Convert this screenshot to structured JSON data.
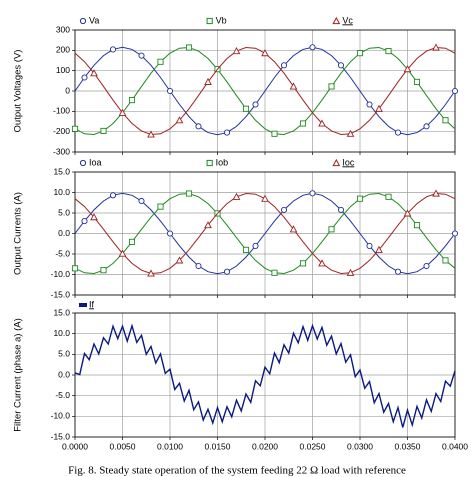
{
  "chart_data": [
    {
      "type": "line",
      "y_label": "Output Voltages (V)",
      "x": [
        0,
        0.001,
        0.002,
        0.003,
        0.004,
        0.005,
        0.006,
        0.007,
        0.008,
        0.009,
        0.01,
        0.011,
        0.012,
        0.013,
        0.014,
        0.015,
        0.016,
        0.017,
        0.018,
        0.019,
        0.02,
        0.021,
        0.022,
        0.023,
        0.024,
        0.025,
        0.026,
        0.027,
        0.028,
        0.029,
        0.03,
        0.031,
        0.032,
        0.033,
        0.034,
        0.035,
        0.036,
        0.037,
        0.038,
        0.039,
        0.04
      ],
      "series": [
        {
          "name": "Va",
          "color": "#1f2f9f",
          "marker": "circle",
          "values": [
            0,
            66.4,
            126.4,
            173.9,
            204.5,
            215,
            204.5,
            173.9,
            126.4,
            66.4,
            0,
            -66.4,
            -126.4,
            -173.9,
            -204.5,
            -215,
            -204.5,
            -173.9,
            -126.4,
            -66.4,
            0,
            66.4,
            126.4,
            173.9,
            204.5,
            215,
            204.5,
            173.9,
            126.4,
            66.4,
            0,
            -66.4,
            -126.4,
            -173.9,
            -204.5,
            -215,
            -204.5,
            -173.9,
            -126.4,
            -66.4,
            0
          ]
        },
        {
          "name": "Vb",
          "color": "#1e8a1e",
          "marker": "square",
          "values": [
            -186.2,
            -210.3,
            -213.8,
            -196.4,
            -159.8,
            -107.5,
            -44.7,
            22.5,
            87.4,
            143.9,
            186.2,
            210.3,
            213.8,
            196.4,
            159.8,
            107.5,
            44.7,
            -22.5,
            -87.4,
            -143.9,
            -186.2,
            -210.3,
            -213.8,
            -196.4,
            -159.8,
            -107.5,
            -44.7,
            22.5,
            87.4,
            143.9,
            186.2,
            210.3,
            213.8,
            196.4,
            159.8,
            107.5,
            44.7,
            -22.5,
            -87.4,
            -143.9,
            -186.2
          ]
        },
        {
          "name": "Vc",
          "color": "#a02020",
          "marker": "triangle",
          "values": [
            186.2,
            143.9,
            87.4,
            22.5,
            -44.7,
            -107.5,
            -159.8,
            -196.4,
            -213.8,
            -210.3,
            -186.2,
            -143.9,
            -87.4,
            -22.5,
            44.7,
            107.5,
            159.8,
            196.4,
            213.8,
            210.3,
            186.2,
            143.9,
            87.4,
            22.5,
            -44.7,
            -107.5,
            -159.8,
            -196.4,
            -213.8,
            -210.3,
            -186.2,
            -143.9,
            -87.4,
            -22.5,
            44.7,
            107.5,
            159.8,
            196.4,
            213.8,
            210.3,
            186.2
          ]
        }
      ],
      "xlim": [
        0,
        0.04
      ],
      "xticks": [
        0,
        0.005,
        0.01,
        0.015,
        0.02,
        0.025,
        0.03,
        0.035,
        0.04
      ],
      "ylim": [
        -300,
        300
      ],
      "yticks": [
        300,
        200,
        100,
        0,
        -100,
        -200,
        -300
      ],
      "grid": true
    },
    {
      "type": "line",
      "y_label": "Output Currents (A)",
      "x": [
        0,
        0.001,
        0.002,
        0.003,
        0.004,
        0.005,
        0.006,
        0.007,
        0.008,
        0.009,
        0.01,
        0.011,
        0.012,
        0.013,
        0.014,
        0.015,
        0.016,
        0.017,
        0.018,
        0.019,
        0.02,
        0.021,
        0.022,
        0.023,
        0.024,
        0.025,
        0.026,
        0.027,
        0.028,
        0.029,
        0.03,
        0.031,
        0.032,
        0.033,
        0.034,
        0.035,
        0.036,
        0.037,
        0.038,
        0.039,
        0.04
      ],
      "series": [
        {
          "name": "Ioa",
          "color": "#1f2f9f",
          "marker": "circle",
          "values": [
            0,
            3.03,
            5.76,
            7.93,
            9.32,
            9.8,
            9.32,
            7.93,
            5.76,
            3.03,
            0,
            -3.03,
            -5.76,
            -7.93,
            -9.32,
            -9.8,
            -9.32,
            -7.93,
            -5.76,
            -3.03,
            0,
            3.03,
            5.76,
            7.93,
            9.32,
            9.8,
            9.32,
            7.93,
            5.76,
            3.03,
            0,
            -3.03,
            -5.76,
            -7.93,
            -9.32,
            -9.8,
            -9.32,
            -7.93,
            -5.76,
            -3.03,
            0
          ]
        },
        {
          "name": "Iob",
          "color": "#1e8a1e",
          "marker": "square",
          "values": [
            -8.49,
            -9.58,
            -9.75,
            -8.95,
            -7.28,
            -4.9,
            -2.04,
            1.02,
            3.99,
            6.56,
            8.49,
            9.58,
            9.75,
            8.95,
            7.28,
            4.9,
            2.04,
            -1.02,
            -3.99,
            -6.56,
            -8.49,
            -9.58,
            -9.75,
            -8.95,
            -7.28,
            -4.9,
            -2.04,
            1.02,
            3.99,
            6.56,
            8.49,
            9.58,
            9.75,
            8.95,
            7.28,
            4.9,
            2.04,
            -1.02,
            -3.99,
            -6.56,
            -8.49
          ]
        },
        {
          "name": "Ioc",
          "color": "#a02020",
          "marker": "triangle",
          "values": [
            8.49,
            6.56,
            3.99,
            1.02,
            -2.04,
            -4.9,
            -7.28,
            -8.95,
            -9.75,
            -9.58,
            -8.49,
            -6.56,
            -3.99,
            -1.02,
            2.04,
            4.9,
            7.28,
            8.95,
            9.75,
            9.58,
            8.49,
            6.56,
            3.99,
            1.02,
            -2.04,
            -4.9,
            -7.28,
            -8.95,
            -9.75,
            -9.58,
            -8.49,
            -6.56,
            -3.99,
            -1.02,
            2.04,
            4.9,
            7.28,
            8.95,
            9.75,
            9.58,
            8.49
          ]
        }
      ],
      "xlim": [
        0,
        0.04
      ],
      "xticks": [
        0,
        0.005,
        0.01,
        0.015,
        0.02,
        0.025,
        0.03,
        0.035,
        0.04
      ],
      "ylim": [
        -15,
        15
      ],
      "yticks": [
        {
          "value": 15,
          "label": "15.0"
        },
        {
          "value": 10,
          "label": "10.0"
        },
        {
          "value": 5,
          "label": "5.0"
        },
        {
          "value": 0,
          "label": "0.0"
        },
        {
          "value": -5,
          "label": "-5.0"
        },
        {
          "value": -10,
          "label": "-10.0"
        },
        {
          "value": -15,
          "label": "-15.0"
        }
      ],
      "grid": true
    },
    {
      "type": "line",
      "y_label": "Filter Current (phase a) (A)",
      "x": [
        0,
        0.0005,
        0.001,
        0.0015,
        0.002,
        0.0025,
        0.003,
        0.0035,
        0.004,
        0.0045,
        0.005,
        0.0055,
        0.006,
        0.0065,
        0.007,
        0.0075,
        0.008,
        0.0085,
        0.009,
        0.0095,
        0.01,
        0.0105,
        0.011,
        0.0115,
        0.012,
        0.0125,
        0.013,
        0.0135,
        0.014,
        0.0145,
        0.015,
        0.0155,
        0.016,
        0.0165,
        0.017,
        0.0175,
        0.018,
        0.0185,
        0.019,
        0.0195,
        0.02,
        0.0205,
        0.021,
        0.0215,
        0.022,
        0.0225,
        0.023,
        0.0235,
        0.024,
        0.0245,
        0.025,
        0.0255,
        0.026,
        0.0265,
        0.027,
        0.0275,
        0.028,
        0.0285,
        0.029,
        0.0295,
        0.03,
        0.0305,
        0.031,
        0.0315,
        0.032,
        0.0325,
        0.033,
        0.0335,
        0.034,
        0.0345,
        0.035,
        0.0355,
        0.036,
        0.0365,
        0.037,
        0.0375,
        0.038,
        0.0385,
        0.039,
        0.0395,
        0.04
      ],
      "series": [
        {
          "name": "If",
          "color": "#0a1a80",
          "marker": "rect",
          "values": [
            0.5,
            0.1,
            5.2,
            3.7,
            7.5,
            5.1,
            9.0,
            7.5,
            11.8,
            8.8,
            11.8,
            8.2,
            11.9,
            7.9,
            9.6,
            5.0,
            6.9,
            2.9,
            5.1,
            0.4,
            1.4,
            -3.5,
            -2.0,
            -6.3,
            -3.7,
            -8.4,
            -6.5,
            -10.9,
            -8.3,
            -11.6,
            -7.9,
            -11.3,
            -7.7,
            -10.1,
            -6.1,
            -8.7,
            -4.6,
            -6.6,
            -1.4,
            -2.6,
            1.9,
            0.3,
            5.3,
            3.0,
            7.3,
            5.3,
            10.1,
            7.8,
            11.7,
            8.4,
            11.9,
            8.7,
            11.5,
            7.2,
            9.4,
            5.1,
            7.6,
            3.1,
            4.9,
            -0.4,
            1.2,
            -3.2,
            -1.6,
            -6.7,
            -4.5,
            -9.0,
            -6.9,
            -11.3,
            -7.9,
            -12.7,
            -8.5,
            -12.1,
            -7.6,
            -10.4,
            -6.0,
            -8.8,
            -4.5,
            -6.4,
            -1.5,
            -2.7,
            1.0
          ]
        }
      ],
      "xlim": [
        0,
        0.04
      ],
      "xticks": [
        {
          "value": 0,
          "label": "0.0000"
        },
        {
          "value": 0.005,
          "label": "0.0050"
        },
        {
          "value": 0.01,
          "label": "0.0100"
        },
        {
          "value": 0.015,
          "label": "0.0150"
        },
        {
          "value": 0.02,
          "label": "0.0200"
        },
        {
          "value": 0.025,
          "label": "0.0250"
        },
        {
          "value": 0.03,
          "label": "0.0300"
        },
        {
          "value": 0.035,
          "label": "0.0350"
        },
        {
          "value": 0.04,
          "label": "0.0400"
        }
      ],
      "ylim": [
        -15,
        15
      ],
      "yticks": [
        {
          "value": 15,
          "label": "15.0"
        },
        {
          "value": 10,
          "label": "10.0"
        },
        {
          "value": 5,
          "label": "5.0"
        },
        {
          "value": 0,
          "label": "0.0"
        },
        {
          "value": -5,
          "label": "-5.0"
        },
        {
          "value": -10,
          "label": "-10.0"
        },
        {
          "value": -15,
          "label": "-15.0"
        }
      ],
      "grid": true
    }
  ],
  "caption": "Fig. 8. Steady state operation of the system feeding 22 Ω load with reference"
}
